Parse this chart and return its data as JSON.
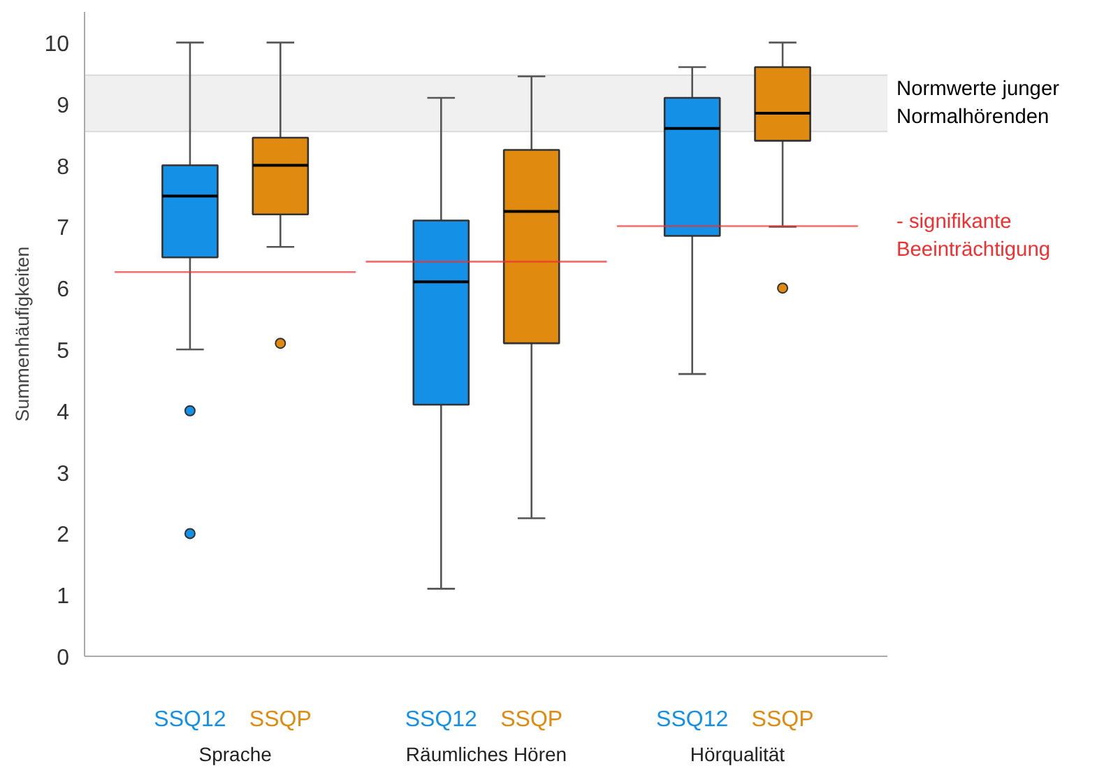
{
  "chart_data": {
    "type": "box",
    "ylabel": "Summenhäufigkeiten",
    "categories": [
      "Sprache",
      "Räumliches Hören",
      "Hörqualität"
    ],
    "ylim": [
      0,
      10.5
    ],
    "yticks": [
      0,
      1,
      2,
      3,
      4,
      5,
      6,
      7,
      8,
      9,
      10
    ],
    "grid": false,
    "series": [
      {
        "name": "SSQ12",
        "color": "#1490e6",
        "boxes": [
          {
            "low": 5,
            "q1": 6.5,
            "median": 7.5,
            "q3": 8,
            "high": 10,
            "outliers": [
              4,
              2
            ]
          },
          {
            "low": 1.1,
            "q1": 4.1,
            "median": 6.1,
            "q3": 7.1,
            "high": 9.1
          },
          {
            "low": 4.6,
            "q1": 6.85,
            "median": 8.6,
            "q3": 9.1,
            "high": 9.6
          }
        ]
      },
      {
        "name": "SSQP",
        "color": "#e08a10",
        "boxes": [
          {
            "low": 6.67,
            "q1": 7.2,
            "median": 8,
            "q3": 8.45,
            "high": 10,
            "outliers": [
              5.1
            ]
          },
          {
            "low": 2.25,
            "q1": 5.1,
            "median": 7.25,
            "q3": 8.25,
            "high": 9.45
          },
          {
            "low": 7,
            "q1": 8.4,
            "median": 8.85,
            "q3": 9.6,
            "high": 10,
            "outliers": [
              6
            ]
          }
        ]
      }
    ],
    "bands": [
      {
        "axis": "y",
        "from": 8.55,
        "to": 9.47,
        "label": "Normwerte junger Normalhörenden",
        "color": "#f0f0f0"
      }
    ],
    "ref_lines": [
      {
        "axis": "y",
        "value": 6.26,
        "color": "#f03030"
      },
      {
        "axis": "y",
        "value": 6.43,
        "color": "#f03030"
      },
      {
        "axis": "y",
        "value": 7.01,
        "color": "#f03030",
        "label": "- signifikante Beeinträchtigung"
      }
    ]
  }
}
